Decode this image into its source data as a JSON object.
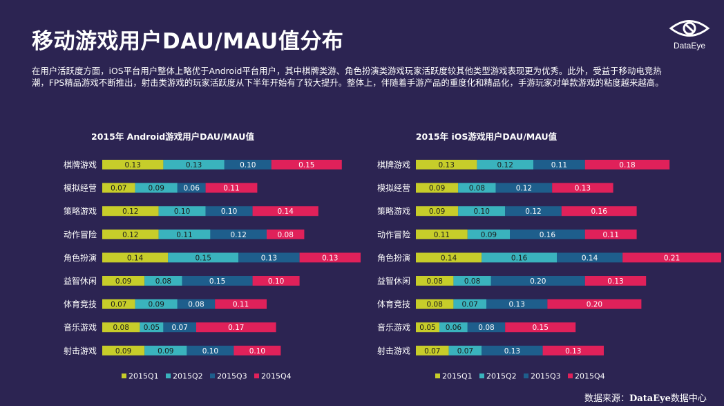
{
  "page": {
    "title": "移动游戏用户DAU/MAU值分布",
    "description": "在用户活跃度方面，iOS平台用户整体上略优于Android平台用户，其中棋牌类游、角色扮演类游戏玩家活跃度较其他类型游戏表现更为优秀。此外，受益于移动电竞热潮，FPS精品游戏不断推出，射击类游戏的玩家活跃度从下半年开始有了较大提升。整体上，伴随着手游产品的重度化和精品化，手游玩家对单款游戏的粘度越来越高。",
    "logo_text": "DataEye",
    "source_prefix": "数据来源：",
    "source_brand": "DataEye",
    "source_suffix": "数据中心"
  },
  "chart_data": [
    {
      "type": "bar",
      "stacked": true,
      "orientation": "horizontal",
      "title": "2015年 Android游戏用户DAU/MAU值",
      "categories": [
        "棋牌游戏",
        "模拟经营",
        "策略游戏",
        "动作冒险",
        "角色扮演",
        "益智休闲",
        "体育竞技",
        "音乐游戏",
        "射击游戏"
      ],
      "series": [
        {
          "name": "2015Q1",
          "color": "#c7cd2a",
          "values": [
            0.13,
            0.07,
            0.12,
            0.12,
            0.14,
            0.09,
            0.07,
            0.08,
            0.09
          ]
        },
        {
          "name": "2015Q2",
          "color": "#3ab3bd",
          "values": [
            0.13,
            0.09,
            0.1,
            0.11,
            0.15,
            0.08,
            0.09,
            0.05,
            0.09
          ]
        },
        {
          "name": "2015Q3",
          "color": "#1e5e8c",
          "values": [
            0.1,
            0.06,
            0.1,
            0.12,
            0.13,
            0.15,
            0.08,
            0.07,
            0.1
          ]
        },
        {
          "name": "2015Q4",
          "color": "#e0215a",
          "values": [
            0.15,
            0.11,
            0.14,
            0.08,
            0.13,
            0.1,
            0.11,
            0.17,
            0.1
          ]
        }
      ],
      "legend_position": "bottom",
      "grid": false
    },
    {
      "type": "bar",
      "stacked": true,
      "orientation": "horizontal",
      "title": "2015年 iOS游戏用户DAU/MAU值",
      "categories": [
        "棋牌游戏",
        "模拟经营",
        "策略游戏",
        "动作冒险",
        "角色扮演",
        "益智休闲",
        "体育竞技",
        "音乐游戏",
        "射击游戏"
      ],
      "series": [
        {
          "name": "2015Q1",
          "color": "#c7cd2a",
          "values": [
            0.13,
            0.09,
            0.09,
            0.11,
            0.14,
            0.08,
            0.08,
            0.05,
            0.07
          ]
        },
        {
          "name": "2015Q2",
          "color": "#3ab3bd",
          "values": [
            0.12,
            0.08,
            0.1,
            0.09,
            0.16,
            0.08,
            0.07,
            0.06,
            0.07
          ]
        },
        {
          "name": "2015Q3",
          "color": "#1e5e8c",
          "values": [
            0.11,
            0.12,
            0.12,
            0.16,
            0.14,
            0.2,
            0.13,
            0.08,
            0.13
          ]
        },
        {
          "name": "2015Q4",
          "color": "#e0215a",
          "values": [
            0.18,
            0.13,
            0.16,
            0.11,
            0.21,
            0.13,
            0.2,
            0.15,
            0.13
          ]
        }
      ],
      "legend_position": "bottom",
      "grid": false
    }
  ]
}
